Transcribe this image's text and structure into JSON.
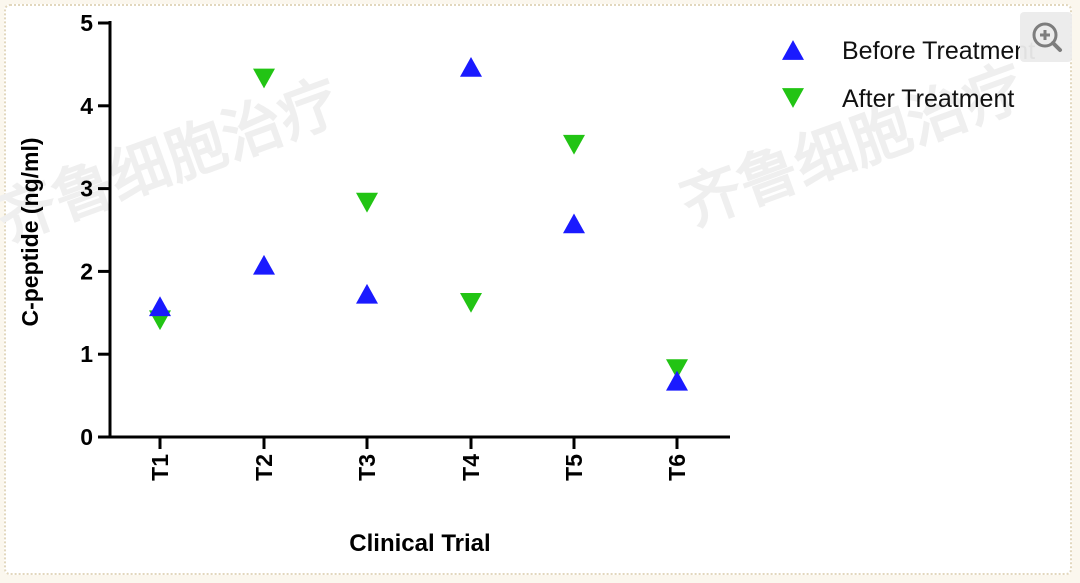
{
  "chart_data": {
    "type": "scatter",
    "xlabel": "Clinical Trial",
    "ylabel": "C-peptide (ng/ml)",
    "categories": [
      "T1",
      "T2",
      "T3",
      "T4",
      "T5",
      "T6"
    ],
    "ylim": [
      0,
      5
    ],
    "yticks": [
      "0",
      "1",
      "2",
      "3",
      "4",
      "5"
    ],
    "legend_position": "top-right",
    "series": [
      {
        "name": "Before Treatment",
        "marker": "triangle-up",
        "color": "#1a1aff",
        "values": [
          1.58,
          2.08,
          1.73,
          4.47,
          2.58,
          0.68
        ]
      },
      {
        "name": "After Treatment",
        "marker": "triangle-down",
        "color": "#22c414",
        "values": [
          1.41,
          4.33,
          2.83,
          1.62,
          3.53,
          0.82
        ]
      }
    ]
  },
  "watermark": {
    "text": "齐鲁细胞治疗",
    "color": "#efefef"
  },
  "zoom_button": {
    "icon": "zoom-in-icon"
  }
}
